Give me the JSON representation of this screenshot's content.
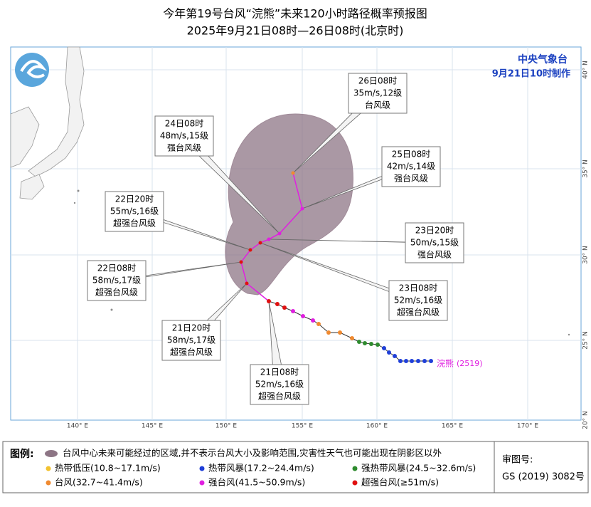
{
  "header": {
    "title": "今年第19号台风“浣熊”未来120小时路径概率预报图",
    "subtitle": "2025年9月21日08时—26日08时(北京时)"
  },
  "agency": {
    "name": "中央气象台",
    "issued": "9月21日10时制作"
  },
  "map": {
    "lon_labels": [
      "140° E",
      "145° E",
      "150° E",
      "155° E",
      "160° E",
      "165° E",
      "170° E"
    ],
    "lat_labels": [
      "40° N",
      "35° N",
      "30° N",
      "25° N",
      "20° N"
    ],
    "typhoon_label": {
      "name": "浣熊",
      "code": "(2519)"
    }
  },
  "callouts": [
    {
      "time": "26日08时",
      "wind": "35m/s,12级",
      "grade": "台风级"
    },
    {
      "time": "24日08时",
      "wind": "48m/s,15级",
      "grade": "强台风级"
    },
    {
      "time": "25日08时",
      "wind": "42m/s,14级",
      "grade": "强台风级"
    },
    {
      "time": "22日20时",
      "wind": "55m/s,16级",
      "grade": "超强台风级"
    },
    {
      "time": "23日20时",
      "wind": "50m/s,15级",
      "grade": "强台风级"
    },
    {
      "time": "22日08时",
      "wind": "58m/s,17级",
      "grade": "超强台风级"
    },
    {
      "time": "23日08时",
      "wind": "52m/s,16级",
      "grade": "超强台风级"
    },
    {
      "time": "21日20时",
      "wind": "58m/s,17级",
      "grade": "超强台风级"
    },
    {
      "time": "21日08时",
      "wind": "52m/s,16级",
      "grade": "超强台风级"
    }
  ],
  "legend": {
    "title": "图例:",
    "cone": "台风中心未来可能经过的区域,并不表示台风大小及影响范围,灾害性天气也可能出现在阴影区以外",
    "items": [
      {
        "label": "热带低压(10.8~17.1m/s)",
        "color": "#f2c230"
      },
      {
        "label": "热带风暴(17.2~24.4m/s)",
        "color": "#1f3fd8"
      },
      {
        "label": "强热带风暴(24.5~32.6m/s)",
        "color": "#2e8b2e"
      },
      {
        "label": "台风(32.7~41.4m/s)",
        "color": "#f08a30"
      },
      {
        "label": "强台风(41.5~50.9m/s)",
        "color": "#e020e0"
      },
      {
        "label": "超强台风(≥51m/s)",
        "color": "#e01010"
      }
    ]
  },
  "approval": {
    "label": "审图号:",
    "number": "GS (2019) 3082号"
  }
}
